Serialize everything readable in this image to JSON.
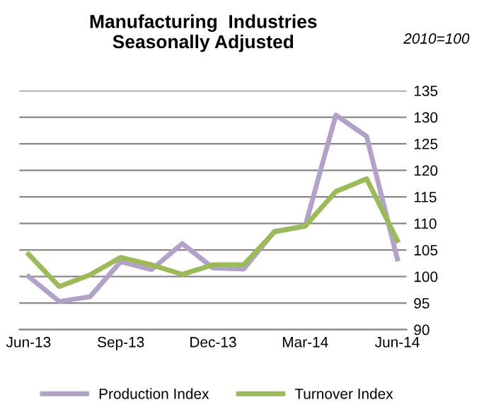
{
  "chart_data": {
    "type": "line",
    "title": "Manufacturing  Industries\nSeasonally Adjusted",
    "annotations": [
      "2010=100"
    ],
    "categories": [
      "Jun-13",
      null,
      null,
      "Sep-13",
      null,
      null,
      "Dec-13",
      null,
      null,
      "Mar-14",
      null,
      null,
      "Jun-14"
    ],
    "series": [
      {
        "name": "Production Index",
        "color": "#b3a2c7",
        "values": [
          100,
          95.3,
          96.2,
          102.8,
          101.3,
          106.2,
          101.6,
          101.4,
          108.5,
          109.5,
          130.4,
          126.4,
          103.3
        ]
      },
      {
        "name": "Turnover Index",
        "color": "#9bbb59",
        "values": [
          104.2,
          98.1,
          100.3,
          103.6,
          102.2,
          100.4,
          102.2,
          102.2,
          108.4,
          109.5,
          116,
          118.4,
          106.8
        ]
      }
    ],
    "ylim": [
      90,
      135
    ],
    "yticks": [
      90,
      95,
      100,
      105,
      110,
      115,
      120,
      125,
      130,
      135
    ],
    "grid": "y",
    "legend": "bottom",
    "marker": "none",
    "line_style": "solid"
  }
}
